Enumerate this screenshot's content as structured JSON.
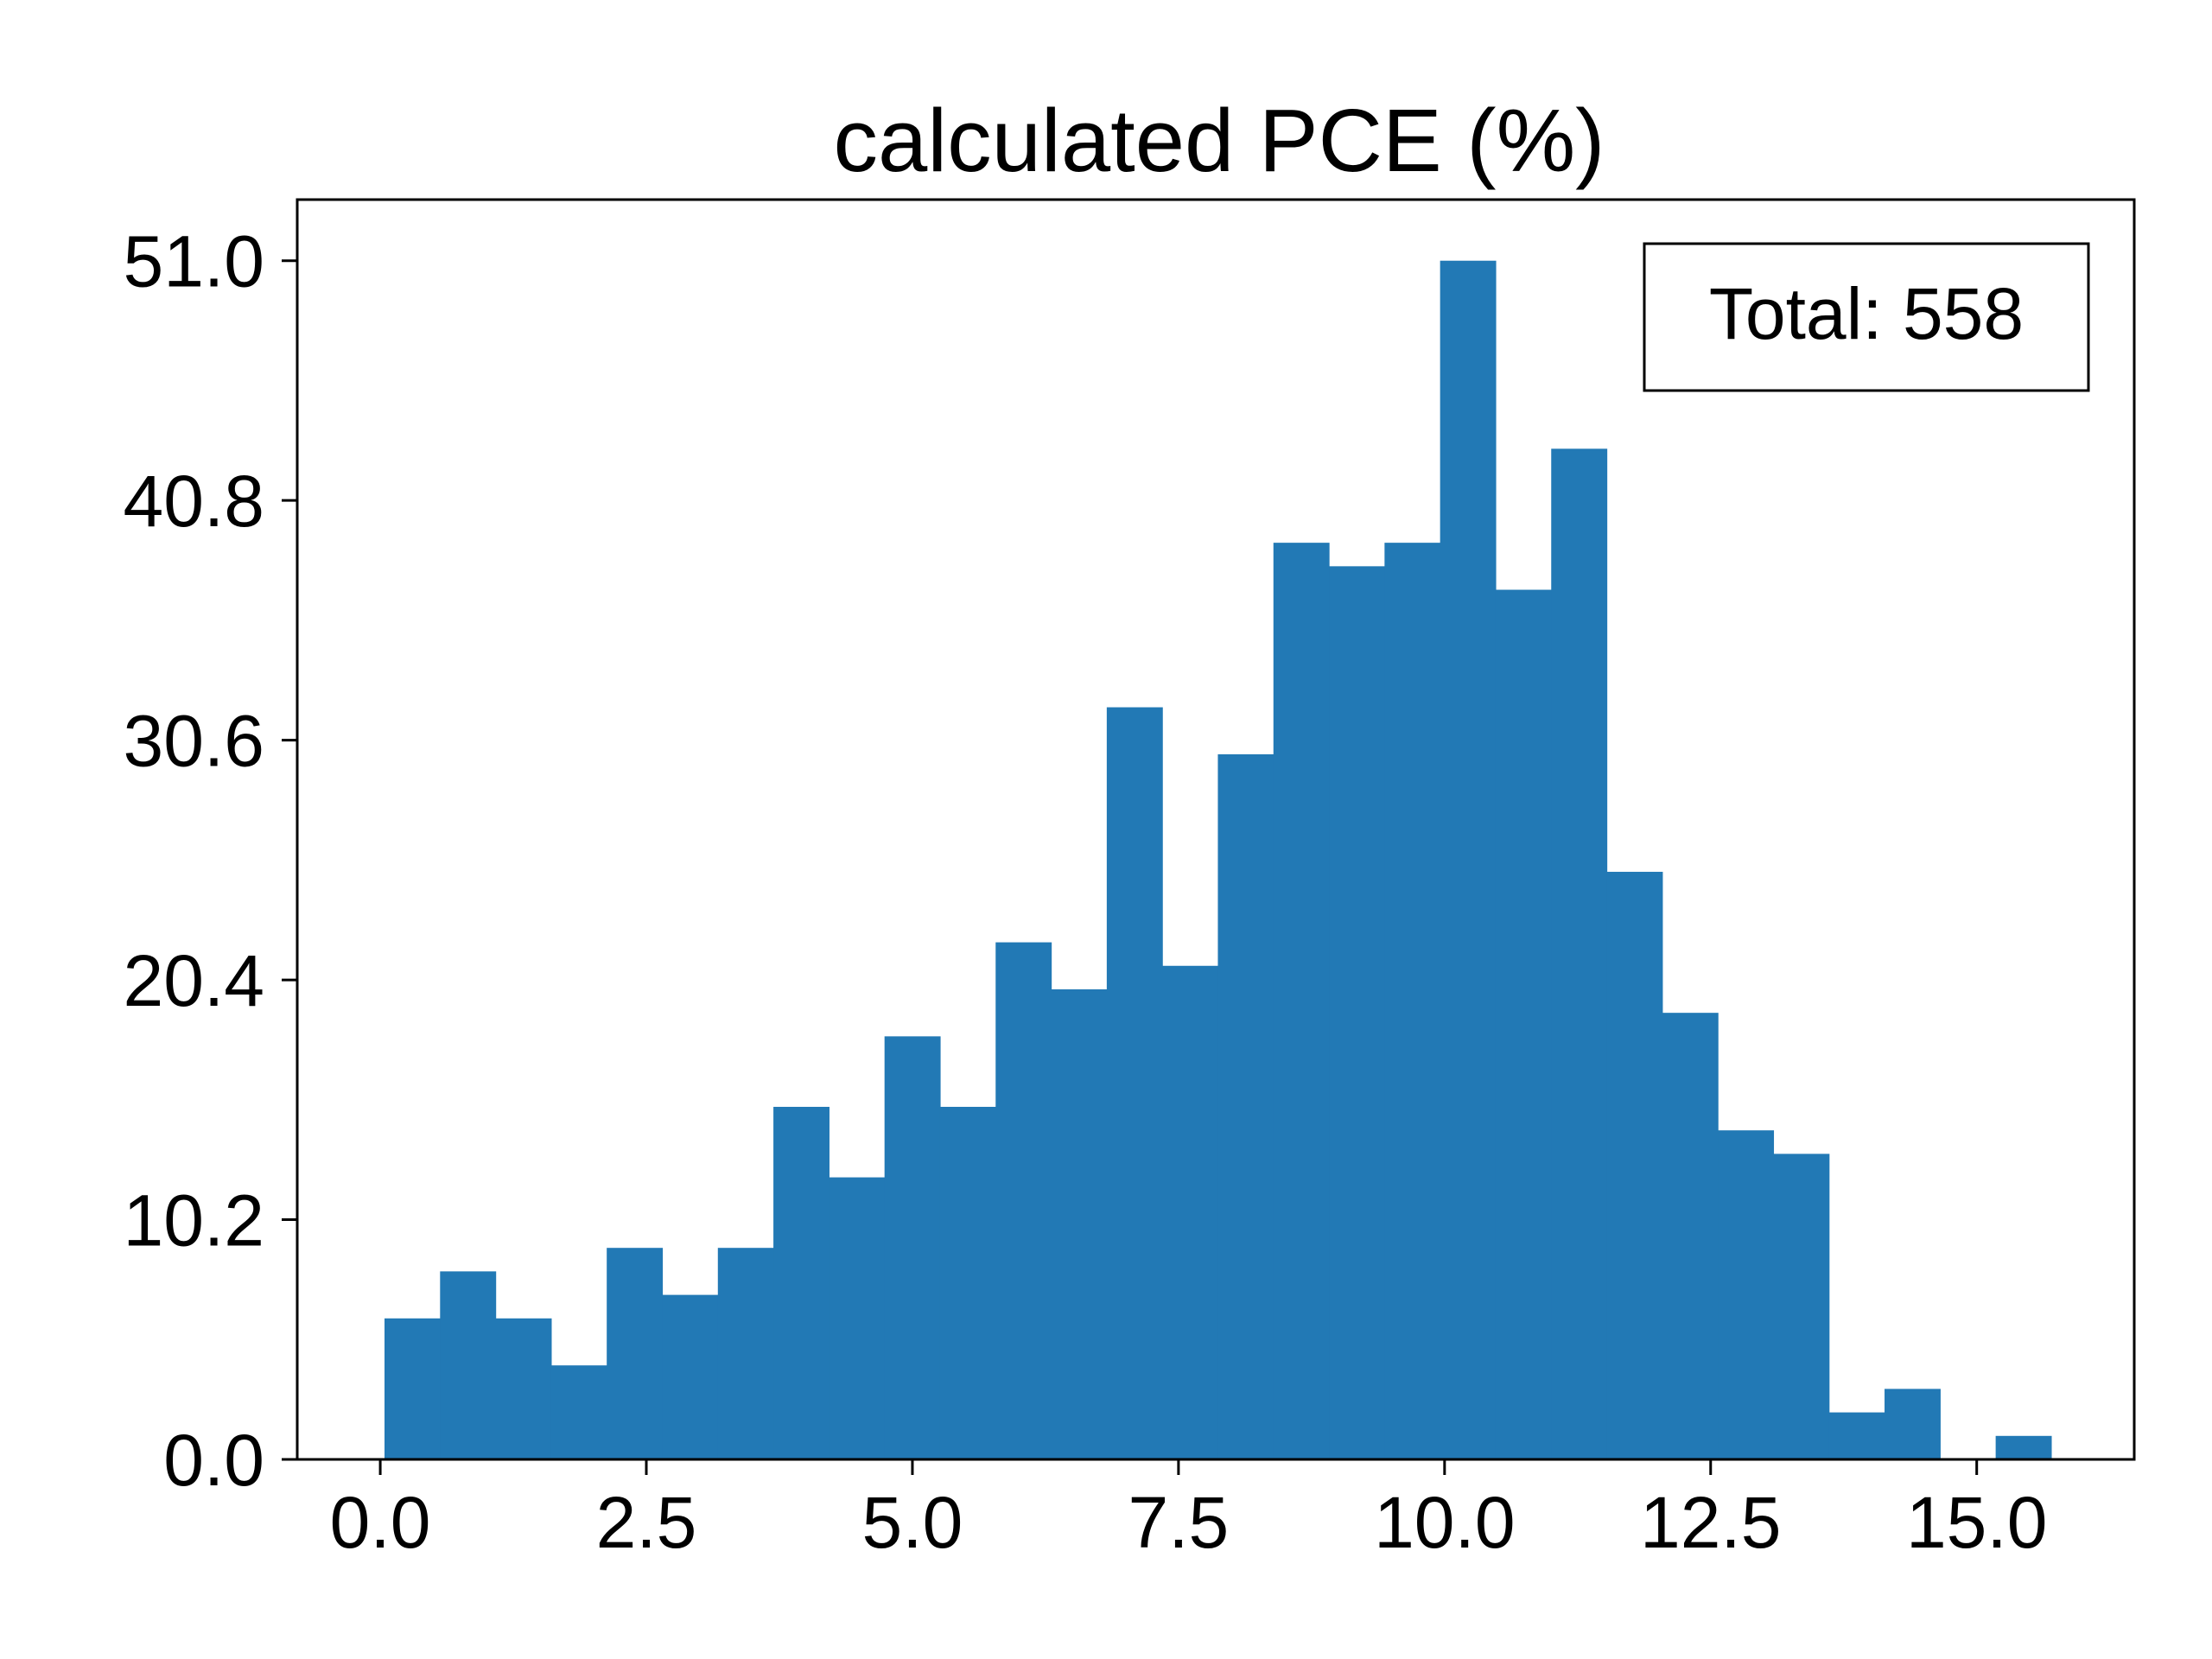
{
  "chart_data": {
    "type": "bar",
    "title": "calculated PCE (%)",
    "xlabel": "",
    "ylabel": "",
    "annotation": "Total: 558",
    "legend": "none",
    "grid": false,
    "color": "#2279b5",
    "xlim": [
      -0.78,
      16.48
    ],
    "ylim": [
      0,
      53.6
    ],
    "x_ticks": [
      0.0,
      2.5,
      5.0,
      7.5,
      10.0,
      12.5,
      15.0
    ],
    "x_tick_labels": [
      "0.0",
      "2.5",
      "5.0",
      "7.5",
      "10.0",
      "12.5",
      "15.0"
    ],
    "y_ticks": [
      0.0,
      10.2,
      20.4,
      30.6,
      40.8,
      51.0
    ],
    "y_tick_labels": [
      "0.0",
      "10.2",
      "20.4",
      "30.6",
      "40.8",
      "51.0"
    ],
    "bins": {
      "start": 0.04,
      "width": 0.522,
      "counts": [
        6,
        8,
        6,
        4,
        9,
        7,
        9,
        15,
        12,
        18,
        15,
        22,
        20,
        32,
        21,
        30,
        39,
        38,
        39,
        51,
        37,
        43,
        25,
        19,
        14,
        13,
        2,
        3,
        0,
        1
      ]
    }
  }
}
